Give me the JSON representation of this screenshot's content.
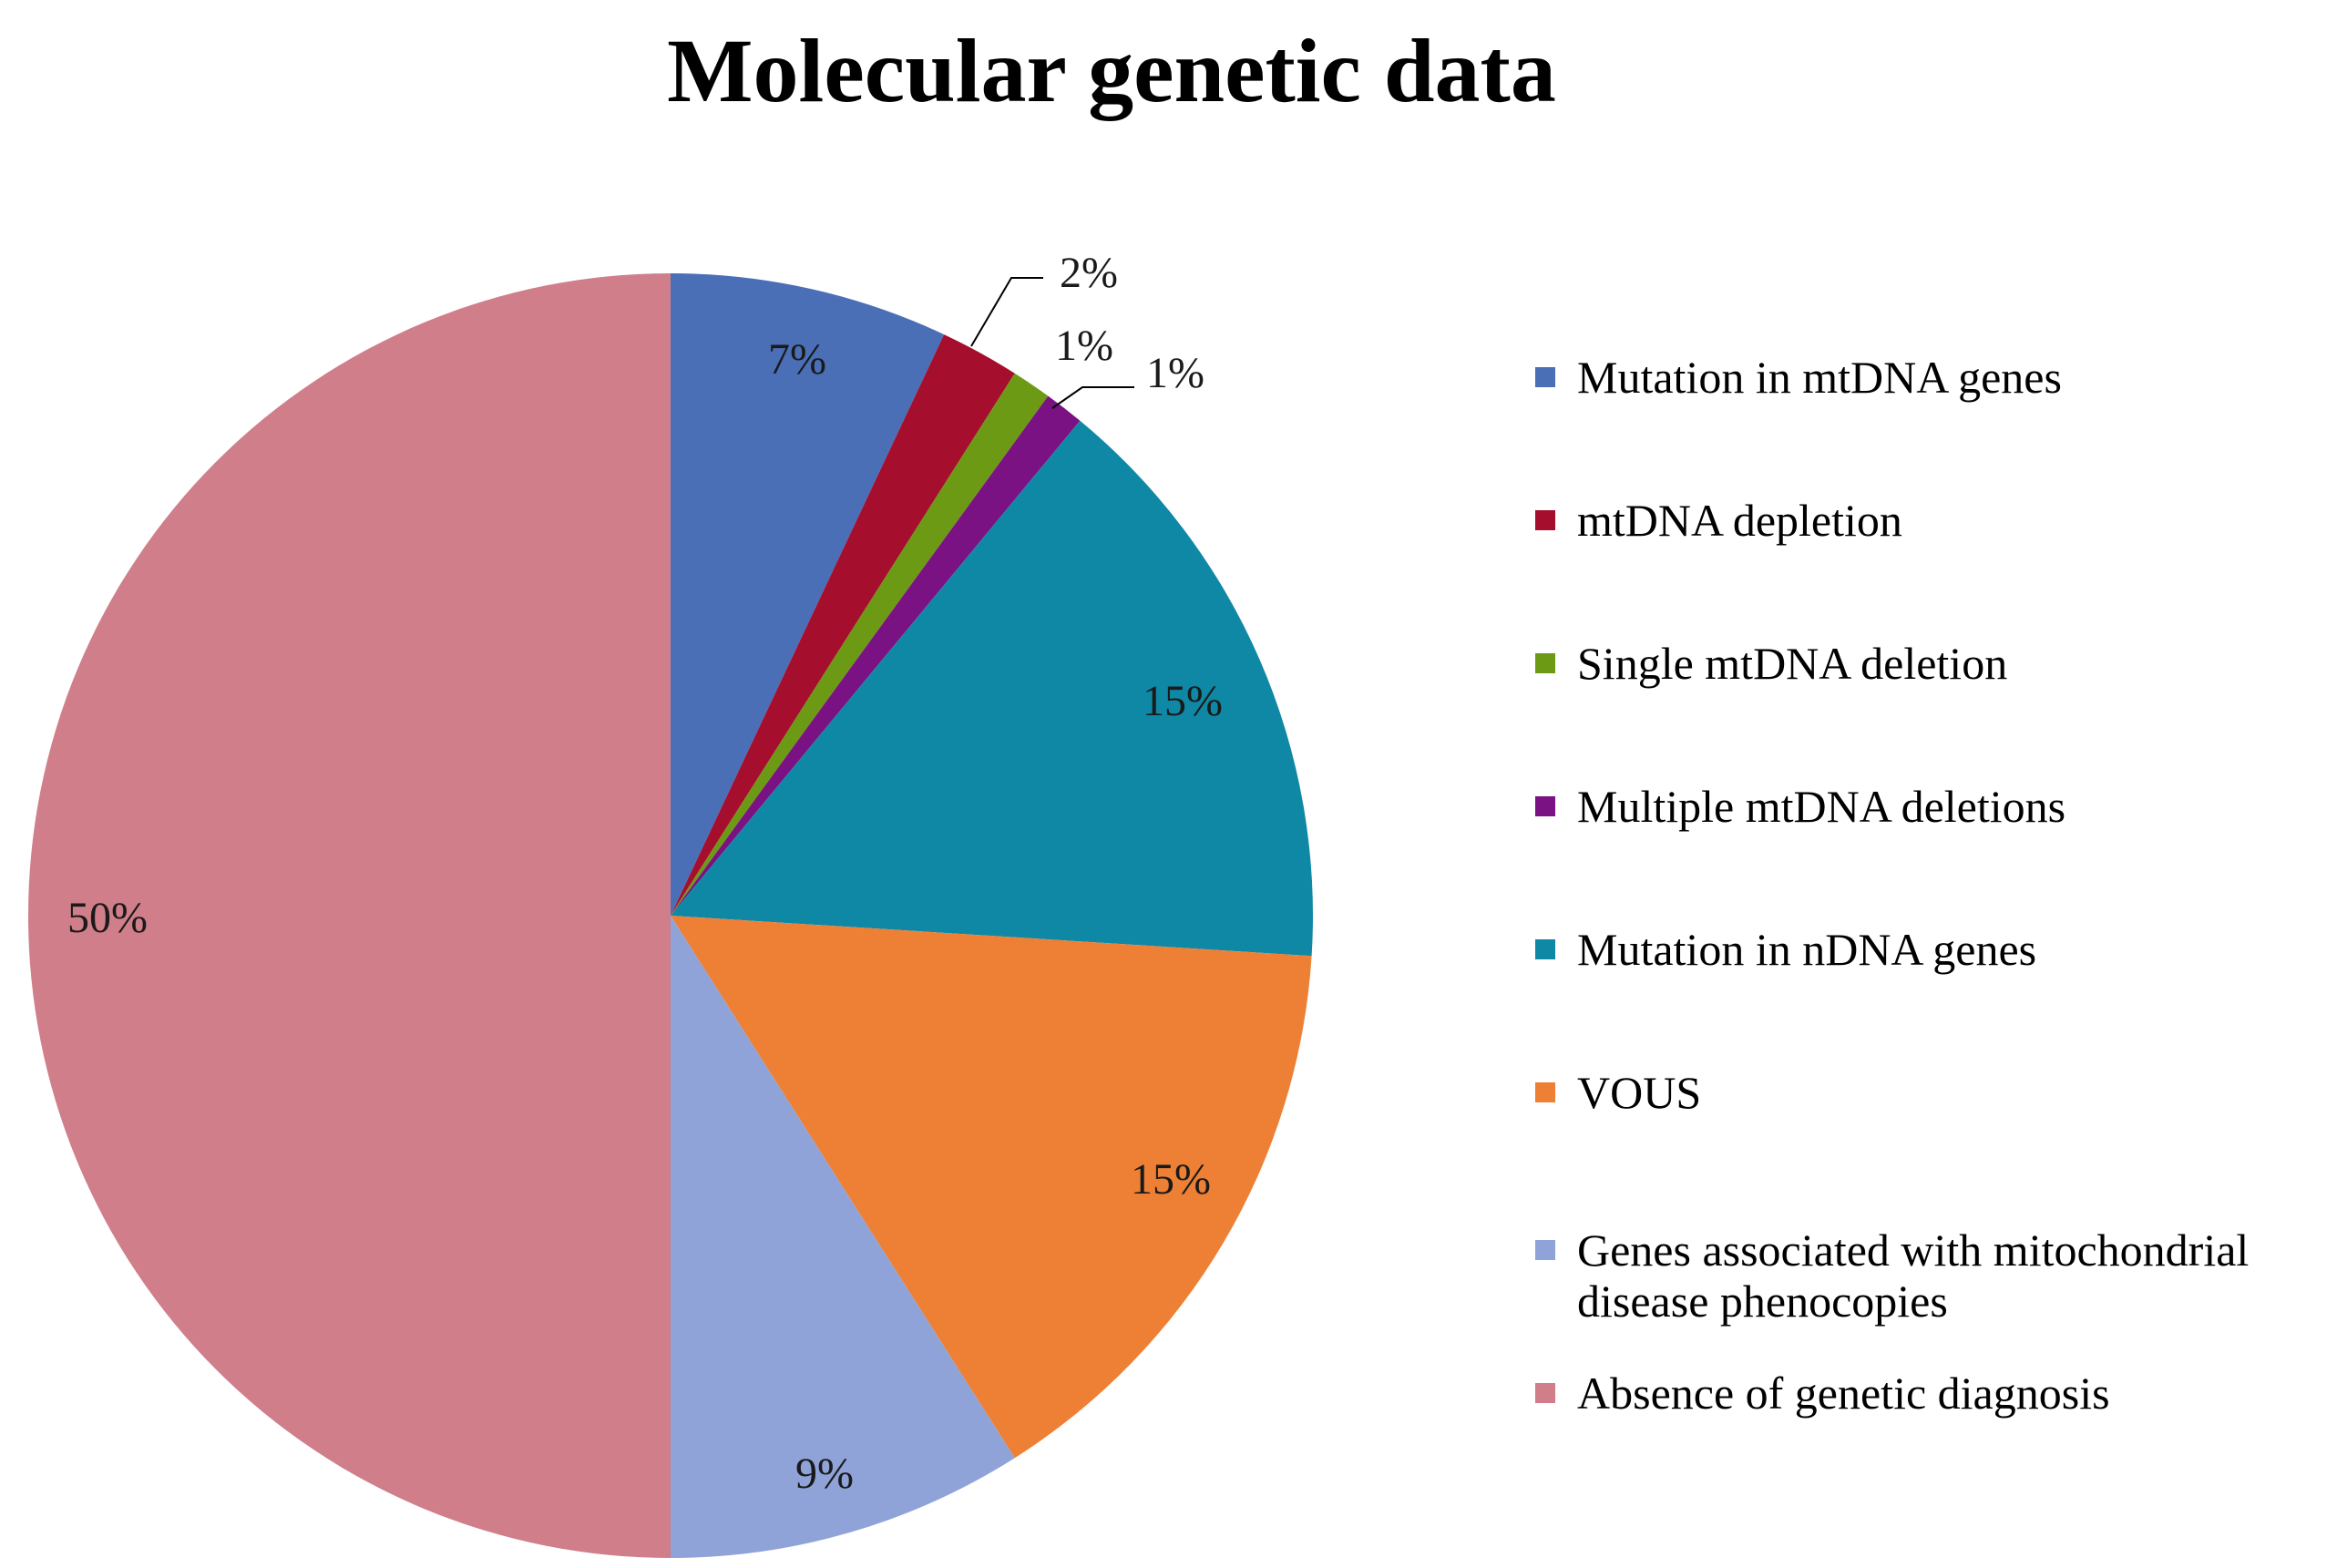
{
  "chart_data": {
    "type": "pie",
    "title": "Molecular genetic data",
    "slices": [
      {
        "label": "Mutation in mtDNA genes",
        "value": 7,
        "display": "7%",
        "color": "#4a6fb7"
      },
      {
        "label": "mtDNA depletion",
        "value": 2,
        "display": "2%",
        "color": "#a50f2d"
      },
      {
        "label": "Single mtDNA deletion",
        "value": 1,
        "display": "1%",
        "color": "#6d9a14"
      },
      {
        "label": "Multiple mtDNA deletions",
        "value": 1,
        "display": "1%",
        "color": "#7a1283"
      },
      {
        "label": "Mutation in nDNA genes",
        "value": 15,
        "display": "15%",
        "color": "#0f88a6"
      },
      {
        "label": "VOUS",
        "value": 15,
        "display": "15%",
        "color": "#ee8035"
      },
      {
        "label": "Genes associated with mitochondrial disease phenocopies",
        "value": 9,
        "display": "9%",
        "color": "#8fa3d8"
      },
      {
        "label": "Absence of genetic diagnosis",
        "value": 50,
        "display": "50%",
        "color": "#cf7e8a"
      }
    ],
    "legend_position": "right"
  }
}
